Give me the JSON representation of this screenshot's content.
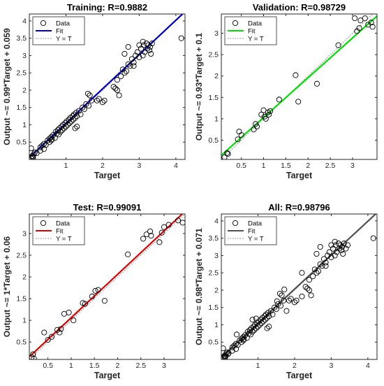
{
  "figure": {
    "data_point_color": "#000000",
    "ideal_line_color": "#808080"
  },
  "chart_data": [
    {
      "type": "scatter",
      "title": "Training: R=0.9882",
      "xlabel": "Target",
      "ylabel": "Output ~= 0.99*Target + 0.059",
      "xlim": [
        0,
        4.25
      ],
      "ylim": [
        0,
        4.2
      ],
      "xticks": [
        "1",
        "2",
        "3",
        "4"
      ],
      "xtick_values": [
        1,
        2,
        3,
        4
      ],
      "yticks": [
        "0.5",
        "1",
        "1.5",
        "2",
        "2.5",
        "3",
        "3.5",
        "4"
      ],
      "ytick_values": [
        0.5,
        1,
        1.5,
        2,
        2.5,
        3,
        3.5,
        4
      ],
      "fit": {
        "slope": 0.99,
        "intercept": 0.059,
        "color": "#0000c8",
        "label": "Fit"
      },
      "ideal_label": "Y = T",
      "data_label": "Data",
      "legend_position": "top-left",
      "grid": false,
      "points": [
        [
          0.05,
          0.05
        ],
        [
          0.08,
          0.1
        ],
        [
          0.1,
          0.08
        ],
        [
          0.12,
          0.15
        ],
        [
          0.05,
          0.32
        ],
        [
          0.15,
          0.2
        ],
        [
          0.2,
          0.18
        ],
        [
          0.1,
          0.05
        ],
        [
          0.3,
          0.35
        ],
        [
          0.4,
          0.45
        ],
        [
          0.45,
          0.42
        ],
        [
          0.5,
          0.55
        ],
        [
          0.55,
          0.5
        ],
        [
          0.6,
          0.65
        ],
        [
          0.62,
          0.58
        ],
        [
          0.65,
          0.7
        ],
        [
          0.7,
          0.62
        ],
        [
          0.72,
          0.8
        ],
        [
          0.75,
          0.75
        ],
        [
          0.78,
          0.85
        ],
        [
          0.8,
          0.72
        ],
        [
          0.82,
          0.9
        ],
        [
          0.85,
          0.8
        ],
        [
          0.88,
          0.95
        ],
        [
          0.9,
          0.85
        ],
        [
          0.92,
          1.0
        ],
        [
          0.95,
          0.9
        ],
        [
          0.98,
          1.05
        ],
        [
          1.0,
          0.95
        ],
        [
          1.02,
          1.1
        ],
        [
          1.05,
          1.0
        ],
        [
          1.08,
          1.15
        ],
        [
          1.1,
          1.05
        ],
        [
          1.12,
          1.2
        ],
        [
          1.15,
          1.1
        ],
        [
          1.18,
          1.25
        ],
        [
          1.2,
          1.15
        ],
        [
          1.22,
          1.3
        ],
        [
          1.25,
          1.2
        ],
        [
          1.28,
          1.35
        ],
        [
          1.3,
          1.25
        ],
        [
          1.35,
          1.4
        ],
        [
          1.4,
          1.3
        ],
        [
          1.45,
          1.5
        ],
        [
          1.5,
          1.45
        ],
        [
          1.55,
          1.6
        ],
        [
          1.6,
          1.9
        ],
        [
          1.62,
          1.55
        ],
        [
          1.65,
          1.85
        ],
        [
          1.7,
          1.7
        ],
        [
          1.25,
          0.9
        ],
        [
          1.3,
          0.95
        ],
        [
          1.85,
          1.7
        ],
        [
          1.9,
          1.75
        ],
        [
          2.0,
          1.65
        ],
        [
          2.05,
          1.7
        ],
        [
          2.3,
          2.1
        ],
        [
          2.35,
          2.05
        ],
        [
          2.4,
          2.3
        ],
        [
          2.5,
          2.4
        ],
        [
          2.55,
          2.6
        ],
        [
          2.6,
          2.5
        ],
        [
          2.65,
          2.55
        ],
        [
          2.7,
          2.75
        ],
        [
          2.75,
          2.7
        ],
        [
          2.8,
          2.9
        ],
        [
          2.85,
          2.8
        ],
        [
          2.9,
          3.0
        ],
        [
          2.95,
          3.1
        ],
        [
          3.0,
          2.95
        ],
        [
          3.05,
          3.2
        ],
        [
          3.1,
          3.4
        ],
        [
          3.12,
          3.3
        ],
        [
          3.15,
          3.1
        ],
        [
          3.2,
          3.35
        ],
        [
          3.22,
          3.2
        ],
        [
          3.25,
          3.3
        ],
        [
          3.28,
          3.15
        ],
        [
          3.3,
          3.25
        ],
        [
          3.32,
          3.05
        ],
        [
          3.35,
          3.35
        ],
        [
          2.6,
          3.05
        ],
        [
          2.7,
          3.25
        ],
        [
          2.85,
          2.7
        ],
        [
          3.0,
          3.3
        ],
        [
          3.1,
          3.0
        ],
        [
          4.15,
          3.5
        ],
        [
          2.4,
          2.0
        ],
        [
          2.45,
          1.85
        ],
        [
          0.3,
          0.25
        ],
        [
          0.35,
          0.4
        ],
        [
          0.4,
          0.3
        ],
        [
          0.55,
          0.6
        ],
        [
          0.6,
          0.55
        ]
      ]
    },
    {
      "type": "scatter",
      "title": "Validation: R=0.98729",
      "xlabel": "Target",
      "ylabel": "Output ~= 0.93*Target + 0.1",
      "xlim": [
        0.05,
        3.55
      ],
      "ylim": [
        0.05,
        3.45
      ],
      "xticks": [
        "0.5",
        "1",
        "1.5",
        "2",
        "2.5",
        "3"
      ],
      "xtick_values": [
        0.5,
        1,
        1.5,
        2,
        2.5,
        3
      ],
      "yticks": [
        "0.5",
        "1",
        "1.5",
        "2",
        "2.5",
        "3"
      ],
      "ytick_values": [
        0.5,
        1,
        1.5,
        2,
        2.5,
        3
      ],
      "fit": {
        "slope": 0.93,
        "intercept": 0.1,
        "color": "#00e000",
        "label": "Fit"
      },
      "ideal_label": "Y = T",
      "data_label": "Data",
      "legend_position": "top-left",
      "grid": false,
      "points": [
        [
          0.12,
          0.1
        ],
        [
          0.18,
          0.2
        ],
        [
          0.2,
          0.18
        ],
        [
          0.42,
          0.52
        ],
        [
          0.45,
          0.7
        ],
        [
          0.5,
          0.62
        ],
        [
          0.78,
          0.75
        ],
        [
          0.82,
          0.88
        ],
        [
          0.85,
          0.82
        ],
        [
          0.95,
          1.1
        ],
        [
          1.0,
          1.2
        ],
        [
          1.02,
          1.05
        ],
        [
          1.05,
          1.0
        ],
        [
          1.1,
          1.15
        ],
        [
          1.12,
          1.1
        ],
        [
          1.15,
          1.18
        ],
        [
          1.35,
          1.45
        ],
        [
          1.72,
          2.02
        ],
        [
          1.78,
          1.4
        ],
        [
          2.2,
          1.82
        ],
        [
          2.68,
          2.72
        ],
        [
          3.05,
          3.35
        ],
        [
          3.1,
          3.05
        ],
        [
          3.15,
          3.12
        ],
        [
          3.18,
          3.3
        ],
        [
          3.28,
          3.35
        ],
        [
          3.35,
          3.2
        ],
        [
          3.42,
          3.25
        ],
        [
          3.45,
          3.15
        ]
      ]
    },
    {
      "type": "scatter",
      "title": "Test: R=0.99091",
      "xlabel": "Target",
      "ylabel": "Output ~= 1*Target + 0.06",
      "xlim": [
        0.1,
        3.45
      ],
      "ylim": [
        0.1,
        3.45
      ],
      "xticks": [
        "0.5",
        "1",
        "1.5",
        "2",
        "2.5",
        "3"
      ],
      "xtick_values": [
        0.5,
        1,
        1.5,
        2,
        2.5,
        3
      ],
      "yticks": [
        "0.5",
        "1",
        "1.5",
        "2",
        "2.5",
        "3"
      ],
      "ytick_values": [
        0.5,
        1,
        1.5,
        2,
        2.5,
        3
      ],
      "fit": {
        "slope": 1,
        "intercept": 0.06,
        "color": "#e00000",
        "label": "Fit"
      },
      "ideal_label": "Y = T",
      "data_label": "Data",
      "legend_position": "top-left",
      "grid": false,
      "points": [
        [
          0.15,
          0.15
        ],
        [
          0.18,
          0.22
        ],
        [
          0.2,
          0.12
        ],
        [
          0.42,
          0.72
        ],
        [
          0.5,
          0.55
        ],
        [
          0.58,
          0.62
        ],
        [
          0.7,
          0.78
        ],
        [
          0.75,
          0.72
        ],
        [
          0.78,
          0.8
        ],
        [
          0.85,
          1.15
        ],
        [
          0.95,
          1.18
        ],
        [
          1.05,
          1.0
        ],
        [
          1.25,
          1.4
        ],
        [
          1.3,
          1.38
        ],
        [
          1.45,
          1.55
        ],
        [
          1.52,
          1.68
        ],
        [
          1.58,
          1.7
        ],
        [
          1.72,
          1.45
        ],
        [
          2.22,
          2.52
        ],
        [
          2.55,
          2.88
        ],
        [
          2.62,
          2.98
        ],
        [
          2.7,
          3.05
        ],
        [
          2.72,
          2.95
        ],
        [
          2.95,
          3.02
        ],
        [
          3.0,
          3.15
        ],
        [
          3.1,
          3.2
        ],
        [
          3.3,
          3.3
        ],
        [
          3.4,
          3.25
        ],
        [
          2.9,
          2.8
        ]
      ]
    },
    {
      "type": "scatter",
      "title": "All: R=0.98796",
      "xlabel": "Target",
      "ylabel": "Output ~= 0.98*Target + 0.071",
      "xlim": [
        0,
        4.25
      ],
      "ylim": [
        0,
        4.2
      ],
      "xticks": [
        "1",
        "2",
        "3",
        "4"
      ],
      "xtick_values": [
        1,
        2,
        3,
        4
      ],
      "yticks": [
        "0.5",
        "1",
        "1.5",
        "2",
        "2.5",
        "3",
        "3.5",
        "4"
      ],
      "ytick_values": [
        0.5,
        1,
        1.5,
        2,
        2.5,
        3,
        3.5,
        4
      ],
      "fit": {
        "slope": 0.98,
        "intercept": 0.071,
        "color": "#505050",
        "label": "Fit"
      },
      "ideal_label": "Y = T",
      "data_label": "Data",
      "legend_position": "top-left",
      "grid": false,
      "points": [
        [
          0.05,
          0.05
        ],
        [
          0.08,
          0.1
        ],
        [
          0.1,
          0.08
        ],
        [
          0.12,
          0.15
        ],
        [
          0.05,
          0.32
        ],
        [
          0.15,
          0.2
        ],
        [
          0.2,
          0.18
        ],
        [
          0.1,
          0.05
        ],
        [
          0.12,
          0.1
        ],
        [
          0.18,
          0.15
        ],
        [
          0.3,
          0.35
        ],
        [
          0.4,
          0.45
        ],
        [
          0.45,
          0.42
        ],
        [
          0.5,
          0.55
        ],
        [
          0.55,
          0.5
        ],
        [
          0.6,
          0.65
        ],
        [
          0.62,
          0.58
        ],
        [
          0.65,
          0.7
        ],
        [
          0.7,
          0.62
        ],
        [
          0.72,
          0.8
        ],
        [
          0.75,
          0.75
        ],
        [
          0.78,
          0.85
        ],
        [
          0.8,
          0.72
        ],
        [
          0.82,
          0.9
        ],
        [
          0.85,
          0.8
        ],
        [
          0.88,
          0.95
        ],
        [
          0.9,
          0.85
        ],
        [
          0.92,
          1.0
        ],
        [
          0.95,
          0.9
        ],
        [
          0.98,
          1.05
        ],
        [
          1.0,
          0.95
        ],
        [
          1.02,
          1.1
        ],
        [
          1.05,
          1.0
        ],
        [
          1.08,
          1.15
        ],
        [
          1.1,
          1.05
        ],
        [
          1.12,
          1.2
        ],
        [
          1.15,
          1.1
        ],
        [
          1.18,
          1.25
        ],
        [
          1.2,
          1.15
        ],
        [
          1.22,
          1.3
        ],
        [
          1.25,
          1.2
        ],
        [
          1.28,
          1.35
        ],
        [
          1.3,
          1.25
        ],
        [
          1.35,
          1.4
        ],
        [
          1.4,
          1.3
        ],
        [
          1.45,
          1.5
        ],
        [
          1.5,
          1.45
        ],
        [
          1.55,
          1.6
        ],
        [
          1.6,
          1.9
        ],
        [
          1.62,
          1.55
        ],
        [
          1.65,
          1.85
        ],
        [
          1.7,
          1.7
        ],
        [
          1.25,
          0.9
        ],
        [
          1.3,
          0.95
        ],
        [
          1.85,
          1.7
        ],
        [
          1.9,
          1.75
        ],
        [
          2.0,
          1.65
        ],
        [
          2.05,
          1.7
        ],
        [
          2.2,
          2.5
        ],
        [
          2.3,
          2.1
        ],
        [
          2.35,
          2.05
        ],
        [
          2.4,
          2.3
        ],
        [
          2.5,
          2.4
        ],
        [
          2.55,
          2.6
        ],
        [
          2.6,
          2.5
        ],
        [
          2.65,
          2.55
        ],
        [
          2.7,
          2.75
        ],
        [
          2.75,
          2.7
        ],
        [
          2.8,
          2.9
        ],
        [
          2.85,
          2.8
        ],
        [
          2.9,
          3.0
        ],
        [
          2.95,
          3.1
        ],
        [
          3.0,
          2.95
        ],
        [
          3.05,
          3.2
        ],
        [
          3.1,
          3.4
        ],
        [
          3.12,
          3.3
        ],
        [
          3.15,
          3.1
        ],
        [
          3.2,
          3.35
        ],
        [
          3.22,
          3.2
        ],
        [
          3.25,
          3.3
        ],
        [
          3.28,
          3.15
        ],
        [
          3.3,
          3.25
        ],
        [
          3.32,
          3.05
        ],
        [
          3.35,
          3.35
        ],
        [
          3.4,
          3.2
        ],
        [
          3.45,
          3.3
        ],
        [
          2.6,
          3.05
        ],
        [
          2.7,
          3.25
        ],
        [
          2.85,
          2.7
        ],
        [
          3.0,
          3.3
        ],
        [
          3.1,
          3.0
        ],
        [
          4.15,
          3.5
        ],
        [
          2.4,
          2.0
        ],
        [
          2.45,
          1.85
        ],
        [
          1.72,
          2.02
        ],
        [
          1.78,
          1.4
        ],
        [
          2.2,
          1.82
        ],
        [
          0.3,
          0.25
        ],
        [
          0.35,
          0.4
        ],
        [
          0.4,
          0.3
        ],
        [
          0.55,
          0.6
        ],
        [
          0.6,
          0.55
        ],
        [
          0.42,
          0.72
        ],
        [
          0.85,
          1.15
        ],
        [
          0.95,
          1.18
        ],
        [
          1.52,
          1.68
        ]
      ]
    }
  ]
}
